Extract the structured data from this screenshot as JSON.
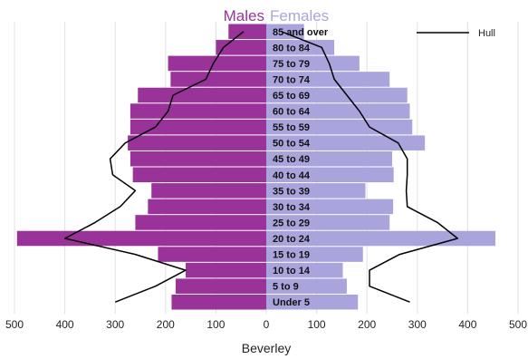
{
  "chart_data": {
    "type": "bar",
    "orientation": "population-pyramid",
    "title_left": "Males",
    "title_right": "Females",
    "xlabel": "Beverley",
    "categories": [
      "Under 5",
      "5 to 9",
      "10 to 14",
      "15 to 19",
      "20 to 24",
      "25 to 29",
      "30 to 34",
      "35 to 39",
      "40 to 44",
      "45 to 49",
      "50 to 54",
      "55 to 59",
      "60 to 64",
      "65 to 69",
      "70 to 74",
      "75 to 79",
      "80 to 84",
      "85 and over"
    ],
    "series": [
      {
        "name": "Males",
        "values": [
          188,
          180,
          160,
          215,
          495,
          260,
          235,
          228,
          265,
          270,
          275,
          270,
          270,
          255,
          190,
          195,
          100,
          75
        ]
      },
      {
        "name": "Females",
        "values": [
          182,
          160,
          152,
          192,
          455,
          245,
          252,
          197,
          253,
          250,
          315,
          290,
          285,
          280,
          245,
          185,
          135,
          75
        ]
      }
    ],
    "overlay": {
      "name": "Hull",
      "males": [
        300,
        220,
        160,
        260,
        400,
        340,
        290,
        260,
        305,
        310,
        280,
        220,
        195,
        185,
        120,
        105,
        85,
        45
      ],
      "females": [
        285,
        205,
        205,
        265,
        380,
        340,
        280,
        278,
        280,
        280,
        262,
        205,
        185,
        160,
        135,
        125,
        110,
        30
      ]
    },
    "xticks": [
      "500",
      "400",
      "300",
      "200",
      "100",
      "0",
      "100",
      "200",
      "300",
      "400",
      "500"
    ],
    "xlim": [
      -500,
      500
    ],
    "grid": true,
    "legend_position": "top-right",
    "colors": {
      "males": "#993399",
      "females": "#aaa4dd",
      "overlay": "#000000",
      "grid": "#e0e0e0"
    }
  }
}
